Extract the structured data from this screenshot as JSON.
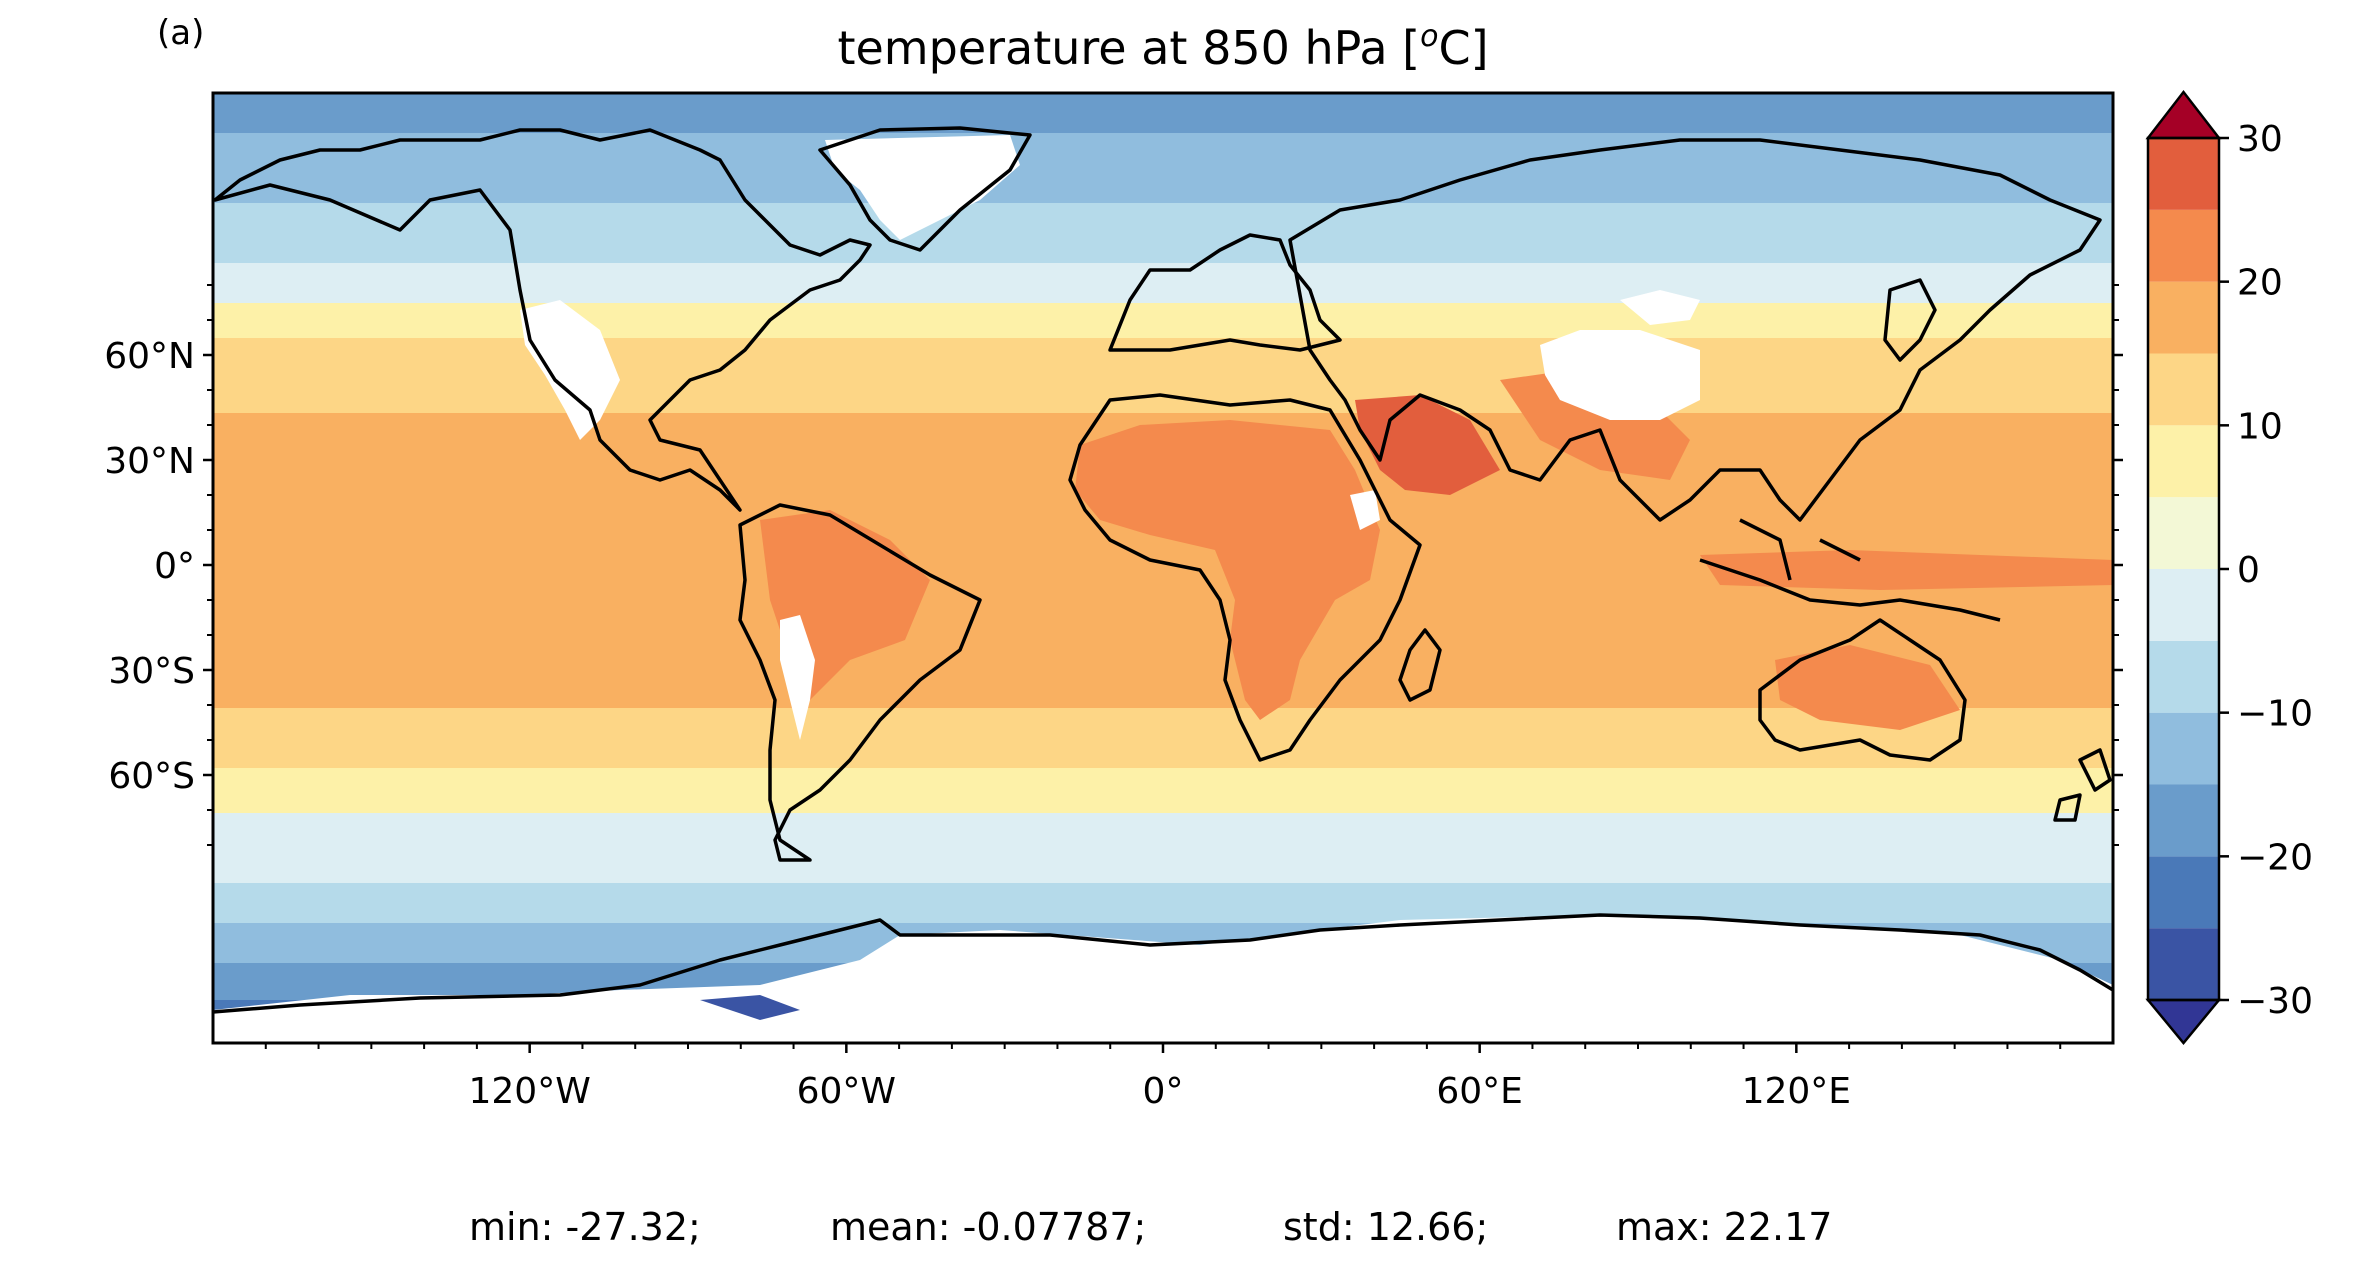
{
  "panel_label": "(a)",
  "title_main": "temperature at 850 hPa [",
  "title_sup": "o",
  "title_end": "C]",
  "lat_labels": [
    "60°N",
    "30°N",
    "0°",
    "30°S",
    "60°S"
  ],
  "lon_labels": [
    "120°W",
    "60°W",
    "0°",
    "60°E",
    "120°E"
  ],
  "colorbar": {
    "tick_labels": [
      "30",
      "20",
      "10",
      "0",
      "−10",
      "−20",
      "−30"
    ],
    "levels": [
      -30,
      -25,
      -20,
      -15,
      -10,
      -5,
      0,
      5,
      10,
      15,
      20,
      25,
      30
    ],
    "colors": [
      "#3a54a4",
      "#4a79b8",
      "#6a9ccb",
      "#90bdde",
      "#b5daea",
      "#ddeef3",
      "#f3f8d6",
      "#fdf1a8",
      "#fdd686",
      "#f9b061",
      "#f48a4d",
      "#e25e3d",
      "#cc2e2c"
    ],
    "under_color": "#313695",
    "over_color": "#a50026"
  },
  "stats": {
    "min": "min: -27.32;",
    "mean": "mean: -0.07787;",
    "std": "std: 12.66;",
    "max": "max: 22.17"
  },
  "land_color": "#ffffff",
  "coast_color": "#000000"
}
